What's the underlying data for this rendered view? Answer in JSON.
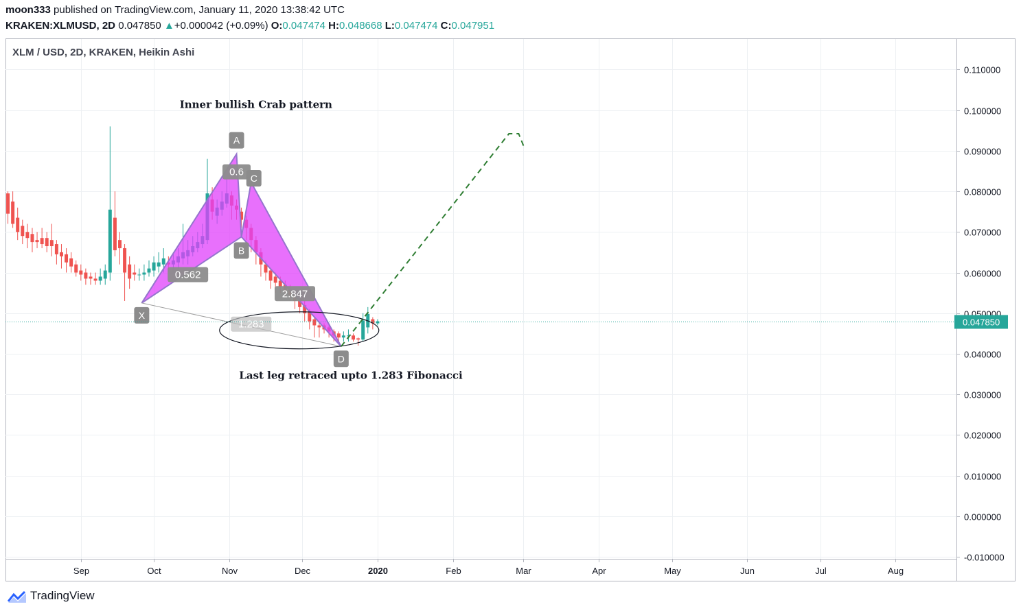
{
  "header": {
    "author": "moon333",
    "published_text": "published on TradingView.com, January 11, 2020 13:38:42 UTC",
    "symbol": "KRAKEN:XLMUSD, 2D",
    "last": "0.047850",
    "change_arrow": "▲",
    "change": "+0.000042 (+0.09%)",
    "o_label": "O:",
    "o_value": "0.047474",
    "h_label": "H:",
    "h_value": "0.048668",
    "l_label": "L:",
    "l_value": "0.047474",
    "c_label": "C:",
    "c_value": "0.047951"
  },
  "footer": {
    "brand": "TradingView",
    "logo_icon": "tradingview-logo-icon"
  },
  "colors": {
    "up": "#26a69a",
    "down": "#ef5350",
    "pattern": "#e040fb",
    "projection": "#2e7d32",
    "price_line": "#26a69a"
  },
  "chart_data": {
    "type": "candlestick",
    "style": "Heikin Ashi",
    "legend": "XLM / USD, 2D, KRAKEN, Heikin Ashi",
    "current_price": 0.04785,
    "current_price_label": "0.047850",
    "y_ticks": [
      "0.110000",
      "0.100000",
      "0.090000",
      "0.080000",
      "0.070000",
      "0.060000",
      "0.050000",
      "0.040000",
      "0.030000",
      "0.020000",
      "0.010000",
      "0.000000",
      "-0.010000"
    ],
    "ylim": [
      -0.0105,
      0.1175
    ],
    "x_ticks": [
      {
        "label": "Sep",
        "date": "2019-09-01"
      },
      {
        "label": "Oct",
        "date": "2019-10-01"
      },
      {
        "label": "Nov",
        "date": "2019-11-01"
      },
      {
        "label": "Dec",
        "date": "2019-12-01"
      },
      {
        "label": "2020",
        "date": "2020-01-01"
      },
      {
        "label": "Feb",
        "date": "2020-02-01"
      },
      {
        "label": "Mar",
        "date": "2020-03-01"
      },
      {
        "label": "Apr",
        "date": "2020-04-01"
      },
      {
        "label": "May",
        "date": "2020-05-01"
      },
      {
        "label": "Jun",
        "date": "2020-06-01"
      },
      {
        "label": "Jul",
        "date": "2020-07-01"
      },
      {
        "label": "Aug",
        "date": "2020-08-01"
      }
    ],
    "xlim": [
      "2019-08-01",
      "2020-08-26"
    ],
    "grid": true,
    "candle_start_date": "2019-08-01",
    "candle_interval_days": 2,
    "candles": [
      [
        0.0795,
        0.0745,
        0.08,
        0.072
      ],
      [
        0.0775,
        0.072,
        0.08,
        0.071
      ],
      [
        0.0735,
        0.07,
        0.076,
        0.068
      ],
      [
        0.0715,
        0.069,
        0.073,
        0.067
      ],
      [
        0.07,
        0.0685,
        0.072,
        0.066
      ],
      [
        0.0695,
        0.0675,
        0.071,
        0.065
      ],
      [
        0.068,
        0.0675,
        0.07,
        0.066
      ],
      [
        0.0685,
        0.067,
        0.071,
        0.066
      ],
      [
        0.0685,
        0.0665,
        0.07,
        0.065
      ],
      [
        0.068,
        0.0665,
        0.072,
        0.064
      ],
      [
        0.067,
        0.0645,
        0.068,
        0.062
      ],
      [
        0.065,
        0.064,
        0.067,
        0.061
      ],
      [
        0.0645,
        0.0625,
        0.066,
        0.06
      ],
      [
        0.0635,
        0.0615,
        0.065,
        0.06
      ],
      [
        0.062,
        0.06,
        0.063,
        0.059
      ],
      [
        0.0605,
        0.0595,
        0.062,
        0.058
      ],
      [
        0.06,
        0.0585,
        0.061,
        0.057
      ],
      [
        0.059,
        0.0585,
        0.06,
        0.057
      ],
      [
        0.0585,
        0.058,
        0.06,
        0.057
      ],
      [
        0.058,
        0.059,
        0.061,
        0.057
      ],
      [
        0.0585,
        0.0605,
        0.062,
        0.057
      ],
      [
        0.06,
        0.0755,
        0.096,
        0.058
      ],
      [
        0.0735,
        0.0655,
        0.08,
        0.064
      ],
      [
        0.068,
        0.066,
        0.07,
        0.062
      ],
      [
        0.066,
        0.06,
        0.067,
        0.053
      ],
      [
        0.062,
        0.0585,
        0.064,
        0.056
      ],
      [
        0.06,
        0.0595,
        0.062,
        0.058
      ],
      [
        0.0595,
        0.0595,
        0.061,
        0.058
      ],
      [
        0.0595,
        0.06,
        0.062,
        0.058
      ],
      [
        0.06,
        0.061,
        0.063,
        0.059
      ],
      [
        0.0605,
        0.0625,
        0.064,
        0.059
      ],
      [
        0.0615,
        0.0625,
        0.065,
        0.06
      ],
      [
        0.062,
        0.0635,
        0.066,
        0.06
      ],
      [
        0.0625,
        0.062,
        0.064,
        0.06
      ],
      [
        0.062,
        0.063,
        0.065,
        0.06
      ],
      [
        0.0625,
        0.064,
        0.066,
        0.061
      ],
      [
        0.0635,
        0.065,
        0.072,
        0.062
      ],
      [
        0.064,
        0.0655,
        0.068,
        0.062
      ],
      [
        0.065,
        0.0665,
        0.069,
        0.064
      ],
      [
        0.066,
        0.0675,
        0.07,
        0.065
      ],
      [
        0.067,
        0.069,
        0.072,
        0.066
      ],
      [
        0.068,
        0.0795,
        0.088,
        0.067
      ],
      [
        0.078,
        0.075,
        0.081,
        0.073
      ],
      [
        0.074,
        0.076,
        0.078,
        0.072
      ],
      [
        0.0755,
        0.0775,
        0.08,
        0.074
      ],
      [
        0.077,
        0.0795,
        0.083,
        0.076
      ],
      [
        0.079,
        0.0765,
        0.08,
        0.073
      ],
      [
        0.0765,
        0.0755,
        0.078,
        0.073
      ],
      [
        0.075,
        0.073,
        0.076,
        0.071
      ],
      [
        0.073,
        0.071,
        0.074,
        0.068
      ],
      [
        0.071,
        0.068,
        0.072,
        0.065
      ],
      [
        0.068,
        0.065,
        0.069,
        0.062
      ],
      [
        0.065,
        0.062,
        0.066,
        0.059
      ],
      [
        0.062,
        0.06,
        0.063,
        0.058
      ],
      [
        0.0605,
        0.058,
        0.061,
        0.056
      ],
      [
        0.059,
        0.0575,
        0.06,
        0.055
      ],
      [
        0.058,
        0.0565,
        0.059,
        0.055
      ],
      [
        0.057,
        0.0555,
        0.058,
        0.054
      ],
      [
        0.056,
        0.0545,
        0.057,
        0.053
      ],
      [
        0.055,
        0.053,
        0.056,
        0.051
      ],
      [
        0.0535,
        0.0515,
        0.054,
        0.05
      ],
      [
        0.052,
        0.05,
        0.053,
        0.048
      ],
      [
        0.0505,
        0.048,
        0.051,
        0.046
      ],
      [
        0.0485,
        0.047,
        0.049,
        0.044
      ],
      [
        0.047,
        0.0465,
        0.048,
        0.044
      ],
      [
        0.047,
        0.046,
        0.0475,
        0.045
      ],
      [
        0.0465,
        0.0455,
        0.047,
        0.044
      ],
      [
        0.0455,
        0.0445,
        0.046,
        0.043
      ],
      [
        0.045,
        0.044,
        0.0455,
        0.043
      ],
      [
        0.044,
        0.0445,
        0.0455,
        0.043
      ],
      [
        0.0445,
        0.0445,
        0.046,
        0.043
      ],
      [
        0.0445,
        0.0435,
        0.045,
        0.043
      ],
      [
        0.0438,
        0.0435,
        0.044,
        0.042
      ],
      [
        0.0435,
        0.0482,
        0.05,
        0.043
      ],
      [
        0.0465,
        0.0498,
        0.0515,
        0.045
      ],
      [
        0.0485,
        0.0475,
        0.049,
        0.046
      ],
      [
        0.0475,
        0.048,
        0.0485,
        0.047
      ]
    ],
    "harmonic_pattern": {
      "name": "Inner bullish Crab pattern",
      "points": [
        {
          "label": "X",
          "date": "2019-09-26",
          "value": 0.0525
        },
        {
          "label": "A",
          "date": "2019-11-04",
          "value": 0.0892
        },
        {
          "label": "B",
          "date": "2019-11-06",
          "value": 0.0688
        },
        {
          "label": "C",
          "date": "2019-11-10",
          "value": 0.0822
        },
        {
          "label": "D",
          "date": "2019-12-17",
          "value": 0.0418
        }
      ],
      "ratios": [
        {
          "label": "0.562",
          "date": "2019-10-15",
          "value": 0.0595
        },
        {
          "label": "0.6",
          "date": "2019-11-04",
          "value": 0.0848
        },
        {
          "label": "2.847",
          "date": "2019-11-28",
          "value": 0.0548
        },
        {
          "label": "1.283",
          "date": "2019-11-10",
          "value": 0.0473
        }
      ]
    },
    "projection": [
      {
        "date": "2019-12-17",
        "value": 0.0418
      },
      {
        "date": "2020-02-24",
        "value": 0.0942
      },
      {
        "date": "2020-02-28",
        "value": 0.0942
      },
      {
        "date": "2020-03-01",
        "value": 0.0912
      }
    ],
    "annotations": [
      {
        "text": "Inner bullish Crab pattern",
        "date": "2019-11-12",
        "value": 0.1005
      },
      {
        "text": "Last leg retraced upto 1.283 Fibonacci",
        "date": "2019-12-21",
        "value": 0.0338
      }
    ]
  }
}
